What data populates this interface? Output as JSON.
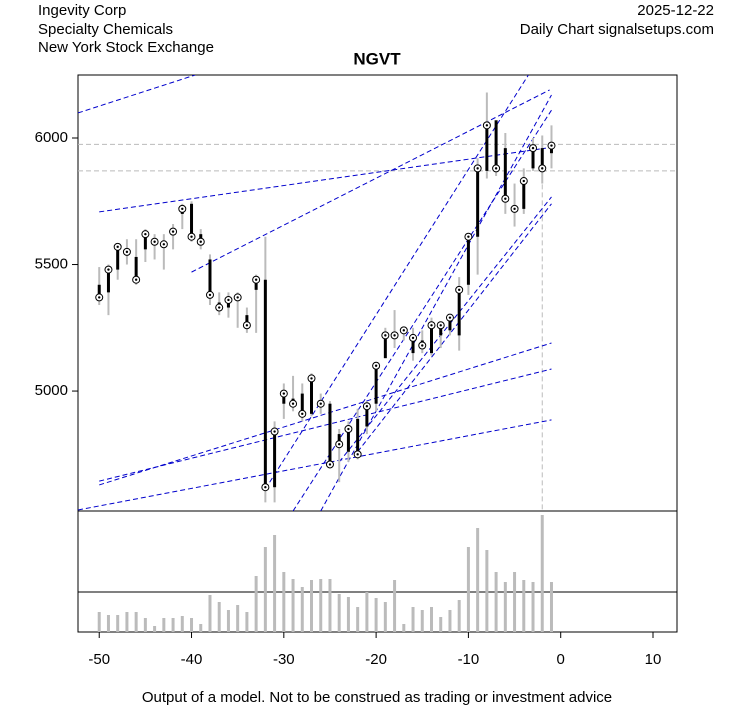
{
  "header": {
    "company": "Ingevity Corp",
    "sector": "Specialty Chemicals",
    "exchange": "New York Stock Exchange",
    "date": "2025-12-22",
    "source": "Daily Chart signalsetups.com"
  },
  "footer": "Output of a model. Not to be construed as trading or investment advice",
  "chart_data": {
    "type": "candlestick",
    "title": "NGVT",
    "x": [
      -50,
      -49,
      -48,
      -47,
      -46,
      -45,
      -44,
      -43,
      -42,
      -41,
      -40,
      -39,
      -38,
      -37,
      -36,
      -35,
      -34,
      -33,
      -32,
      -31,
      -30,
      -29,
      -28,
      -27,
      -26,
      -25,
      -24,
      -23,
      -22,
      -21,
      -20,
      -19,
      -18,
      -17,
      -16,
      -15,
      -14,
      -13,
      -12,
      -11,
      -10,
      -9,
      -8,
      -7,
      -6,
      -5,
      -4,
      -3,
      -2,
      -1
    ],
    "open": [
      5420,
      5390,
      5480,
      5560,
      5530,
      5560,
      5600,
      5570,
      5620,
      5700,
      5740,
      5620,
      5520,
      5350,
      5330,
      5370,
      5300,
      5400,
      5440,
      4620,
      4950,
      4970,
      4990,
      4910,
      4950,
      4950,
      4830,
      4760,
      4890,
      4860,
      4950,
      5130,
      5210,
      5230,
      5150,
      5200,
      5150,
      5220,
      5240,
      5220,
      5420,
      5610,
      5870,
      6070,
      5960,
      5720,
      5720,
      5880,
      5960,
      5940
    ],
    "high": [
      5490,
      5500,
      5580,
      5600,
      5600,
      5640,
      5620,
      5620,
      5660,
      5740,
      5750,
      5640,
      5540,
      5390,
      5390,
      5390,
      5330,
      5460,
      5610,
      4880,
      5030,
      5060,
      5030,
      5070,
      4990,
      4960,
      4850,
      4880,
      4930,
      4960,
      5110,
      5250,
      5320,
      5250,
      5250,
      5240,
      5290,
      5270,
      5300,
      5450,
      5620,
      5920,
      6180,
      6070,
      6020,
      5820,
      5880,
      6000,
      6010,
      6050
    ],
    "low": [
      5340,
      5300,
      5440,
      5500,
      5420,
      5510,
      5520,
      5480,
      5560,
      5640,
      5590,
      5560,
      5340,
      5300,
      5290,
      5250,
      5230,
      5230,
      4560,
      4560,
      4890,
      4920,
      4880,
      4900,
      4910,
      4700,
      4640,
      4720,
      4730,
      4830,
      4920,
      5130,
      5170,
      5200,
      5120,
      5150,
      5140,
      5170,
      5220,
      5160,
      5380,
      5460,
      5840,
      5850,
      5700,
      5650,
      5700,
      5870,
      5820,
      5880
    ],
    "close": [
      5370,
      5480,
      5570,
      5550,
      5440,
      5620,
      5590,
      5580,
      5630,
      5720,
      5610,
      5590,
      5380,
      5330,
      5360,
      5370,
      5260,
      5440,
      4620,
      4840,
      4990,
      4950,
      4910,
      5050,
      4950,
      4710,
      4790,
      4850,
      4750,
      4940,
      5100,
      5220,
      5220,
      5240,
      5210,
      5180,
      5260,
      5260,
      5290,
      5400,
      5610,
      5880,
      6050,
      5880,
      5760,
      5720,
      5830,
      5960,
      5880,
      5970
    ],
    "volume": [
      20,
      17,
      17,
      20,
      20,
      14,
      6,
      14,
      14,
      16,
      14,
      8,
      37,
      30,
      22,
      27,
      20,
      56,
      85,
      97,
      60,
      53,
      45,
      52,
      53,
      53,
      38,
      35,
      25,
      40,
      34,
      30,
      52,
      8,
      25,
      22,
      25,
      15,
      22,
      32,
      85,
      104,
      82,
      60,
      50,
      60,
      52,
      50,
      117,
      50
    ],
    "volume_ylim": [
      0,
      121
    ],
    "volume_ref": 40,
    "trendlines": [
      {
        "x": [
          -52.3,
          -39.6
        ],
        "y": [
          6099,
          6249
        ]
      },
      {
        "x": [
          -50,
          -1.6
        ],
        "y": [
          5708,
          5960
        ]
      },
      {
        "x": [
          -40,
          -1.2
        ],
        "y": [
          5470,
          6190
        ]
      },
      {
        "x": [
          -32,
          -3.5
        ],
        "y": [
          4613,
          6249
        ]
      },
      {
        "x": [
          -29,
          -1
        ],
        "y": [
          4526,
          6110
        ]
      },
      {
        "x": [
          -26,
          -1
        ],
        "y": [
          4526,
          6170
        ]
      },
      {
        "x": [
          -24,
          -1
        ],
        "y": [
          4720,
          5767
        ]
      },
      {
        "x": [
          -22,
          -1
        ],
        "y": [
          4760,
          5740
        ]
      },
      {
        "x": [
          -52.3,
          -1
        ],
        "y": [
          4530,
          4886
        ]
      },
      {
        "x": [
          -50,
          -1
        ],
        "y": [
          4644,
          5087
        ]
      },
      {
        "x": [
          -50,
          -1
        ],
        "y": [
          4629,
          5190
        ]
      }
    ],
    "hlines": [
      5975,
      5870
    ],
    "vline": -2,
    "xlim": [
      -52.3,
      12.6
    ],
    "xticks": [
      -50,
      -40,
      -30,
      -20,
      -10,
      0,
      10
    ],
    "ylim": [
      4526,
      6249
    ],
    "yticks": [
      5000,
      5500,
      6000
    ],
    "line_color": "#0000cc",
    "bar_color": "#000000",
    "wick_color": "#bbbbbb",
    "volume_color": "#bbbbbb"
  }
}
